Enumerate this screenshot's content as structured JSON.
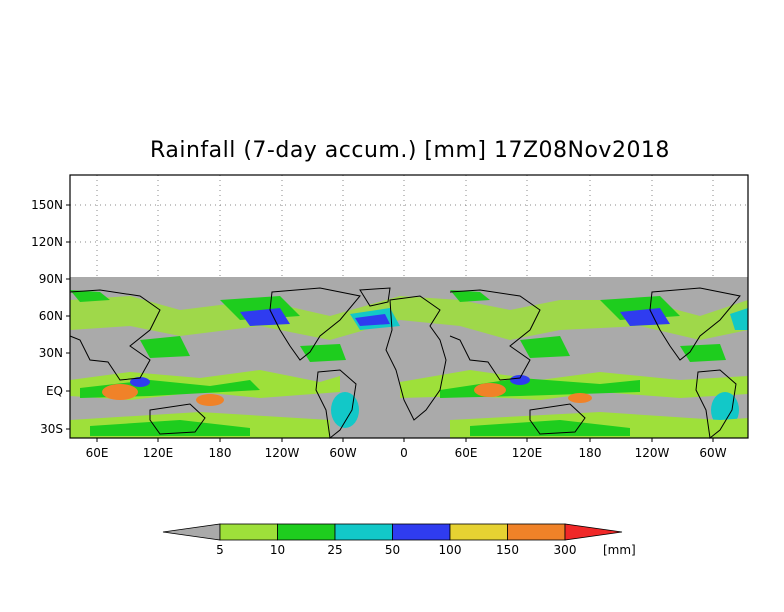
{
  "title": "Rainfall (7-day accum.) [mm] 17Z08Nov2018",
  "map": {
    "lat_labels": [
      "150N",
      "120N",
      "90N",
      "60N",
      "30N",
      "EQ",
      "30S"
    ],
    "lon_labels": [
      "60E",
      "120E",
      "180",
      "120W",
      "60W",
      "0",
      "60E",
      "120E",
      "180",
      "120W",
      "60W"
    ],
    "no_data_color": "#aaaaaa",
    "land_boundary_color": "#000000"
  },
  "colorbar": {
    "units": "[mm]",
    "bins": [
      {
        "color": "#aaaaaa"
      },
      {
        "color": "#9ee03a"
      },
      {
        "color": "#1ecd1e"
      },
      {
        "color": "#12c8c8"
      },
      {
        "color": "#2f3cf0"
      },
      {
        "color": "#e6d232"
      },
      {
        "color": "#f08228"
      },
      {
        "color": "#f02828"
      }
    ],
    "labels": [
      "5",
      "10",
      "25",
      "50",
      "100",
      "150",
      "300"
    ]
  }
}
